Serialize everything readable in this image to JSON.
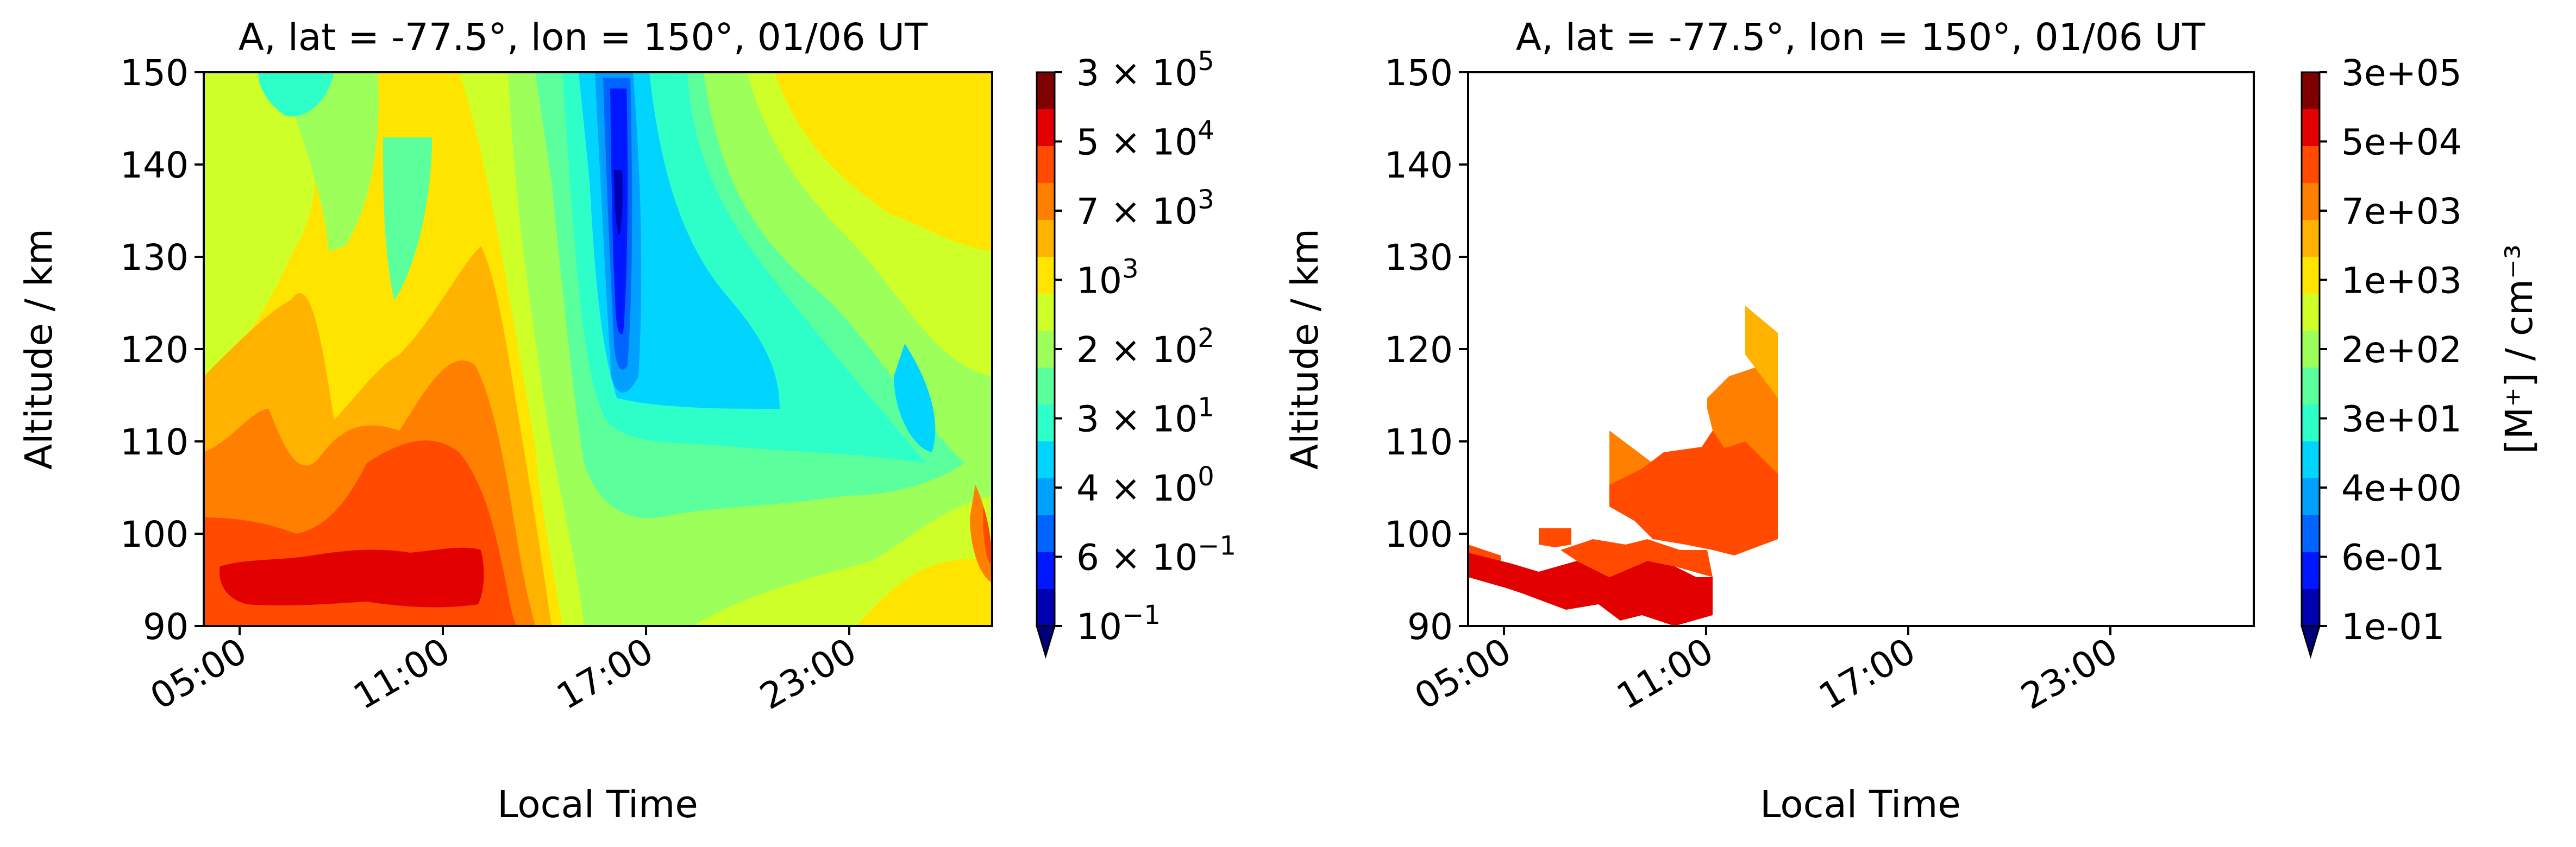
{
  "chart_data": [
    {
      "type": "contour",
      "title": "A, lat = -77.5°, lon = 150°, 01/06 UT",
      "xlabel": "Local Time",
      "ylabel": "Altitude / km",
      "xticks": [
        "05:00",
        "11:00",
        "17:00",
        "23:00"
      ],
      "yticks": [
        "90",
        "100",
        "110",
        "120",
        "130",
        "140",
        "150"
      ],
      "ylim": [
        90,
        150
      ],
      "colorbar": {
        "scale": "log",
        "tick_base": [
          "3",
          "5",
          "7",
          "10",
          "2",
          "3",
          "4",
          "6",
          "10"
        ],
        "tick_exp": [
          "5",
          "4",
          "3",
          "3",
          "2",
          "1",
          "0",
          "−1",
          "−1"
        ],
        "tick_sci": [
          true,
          true,
          true,
          false,
          true,
          true,
          true,
          true,
          false
        ],
        "extend": "min",
        "label": ""
      }
    },
    {
      "type": "contour",
      "title": "A, lat = -77.5°, lon = 150°, 01/06 UT",
      "xlabel": "Local Time",
      "ylabel": "Altitude / km",
      "xticks": [
        "05:00",
        "11:00",
        "17:00",
        "23:00"
      ],
      "yticks": [
        "90",
        "100",
        "110",
        "120",
        "130",
        "140",
        "150"
      ],
      "ylim": [
        90,
        150
      ],
      "colorbar": {
        "scale": "log",
        "ticks": [
          "3e+05",
          "5e+04",
          "7e+03",
          "1e+03",
          "2e+02",
          "3e+01",
          "4e+00",
          "6e-01",
          "1e-01"
        ],
        "extend": "min",
        "label": "[M⁺] / cm⁻³"
      }
    }
  ],
  "colormap": [
    "#7f0000",
    "#e30000",
    "#ff4a00",
    "#ff8000",
    "#ffb300",
    "#ffe400",
    "#cfff28",
    "#9dff5a",
    "#5bff9c",
    "#2effc9",
    "#00d4ff",
    "#00a0ff",
    "#0064ff",
    "#0018ff",
    "#0000b0"
  ]
}
